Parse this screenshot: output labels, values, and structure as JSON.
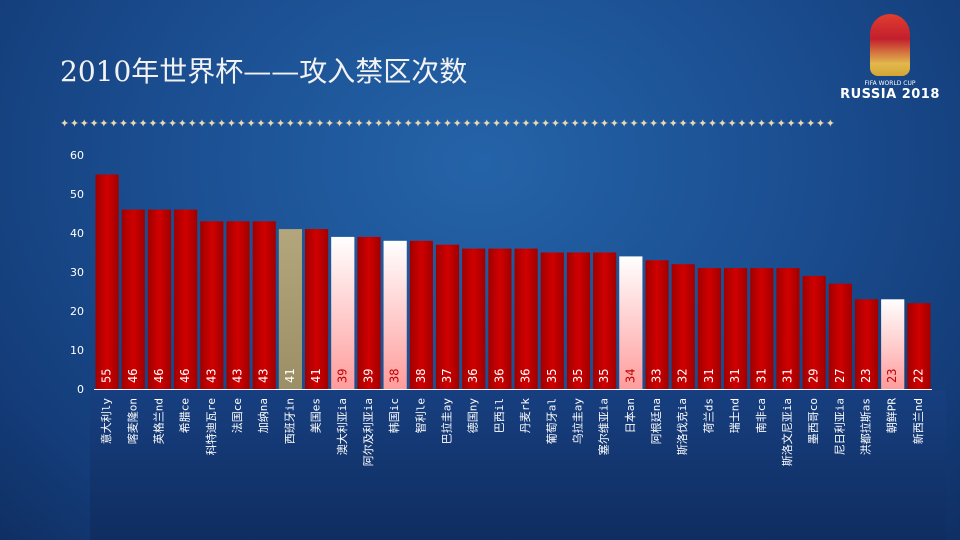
{
  "title": "2010年世界杯——攻入禁区次数",
  "divider": "✦✦✦✦✦✦✦✦✦✦✦✦✦✦✦✦✦✦✦✦✦✦✦✦✦✦✦✦✦✦✦✦✦✦✦✦✦✦✦✦✦✦✦✦✦✦✦✦✦✦✦✦✦✦✦✦✦✦✦✦✦✦✦✦✦✦✦✦✦✦✦✦✦✦✦✦✦✦✦",
  "logo": {
    "line1": "FIFA WORLD CUP",
    "line2": "RUSSIA 2018"
  },
  "colors": {
    "normal": "#c00000",
    "highlight_gold": "#a89a72",
    "highlight_pink": "#ffb3b3"
  },
  "chart_data": {
    "type": "bar",
    "title": "2010年世界杯——攻入禁区次数",
    "ylim": [
      0,
      60
    ],
    "yticks": [
      0,
      10,
      20,
      30,
      40,
      50,
      60
    ],
    "categories": [
      "意大利ly",
      "喀麦隆on",
      "英格兰nd",
      "希腊ce",
      "科特迪瓦re",
      "法国ce",
      "加纳na",
      "西班牙in",
      "美国es",
      "澳大利亚ia",
      "阿尔及利亚ia",
      "韩国ic",
      "智利le",
      "巴拉圭ay",
      "德国ny",
      "巴西il",
      "丹麦rk",
      "葡萄牙al",
      "乌拉圭ay",
      "塞尔维亚ia",
      "日本an",
      "阿根廷na",
      "斯洛伐克ia",
      "荷兰ds",
      "瑞士nd",
      "南非ca",
      "斯洛文尼亚ia",
      "墨西哥co",
      "尼日利亚ia",
      "洪都拉斯as",
      "朝鲜PR",
      "新西兰nd"
    ],
    "values": [
      55,
      46,
      46,
      46,
      43,
      43,
      43,
      41,
      41,
      39,
      39,
      38,
      38,
      37,
      36,
      36,
      36,
      35,
      35,
      35,
      34,
      33,
      32,
      31,
      31,
      31,
      31,
      29,
      27,
      23,
      23,
      22
    ],
    "highlight": [
      "normal",
      "normal",
      "normal",
      "normal",
      "normal",
      "normal",
      "normal",
      "gold",
      "normal",
      "pink",
      "normal",
      "pink",
      "normal",
      "normal",
      "normal",
      "normal",
      "normal",
      "normal",
      "normal",
      "normal",
      "pink",
      "normal",
      "normal",
      "normal",
      "normal",
      "normal",
      "normal",
      "normal",
      "normal",
      "normal",
      "pink",
      "normal"
    ]
  }
}
